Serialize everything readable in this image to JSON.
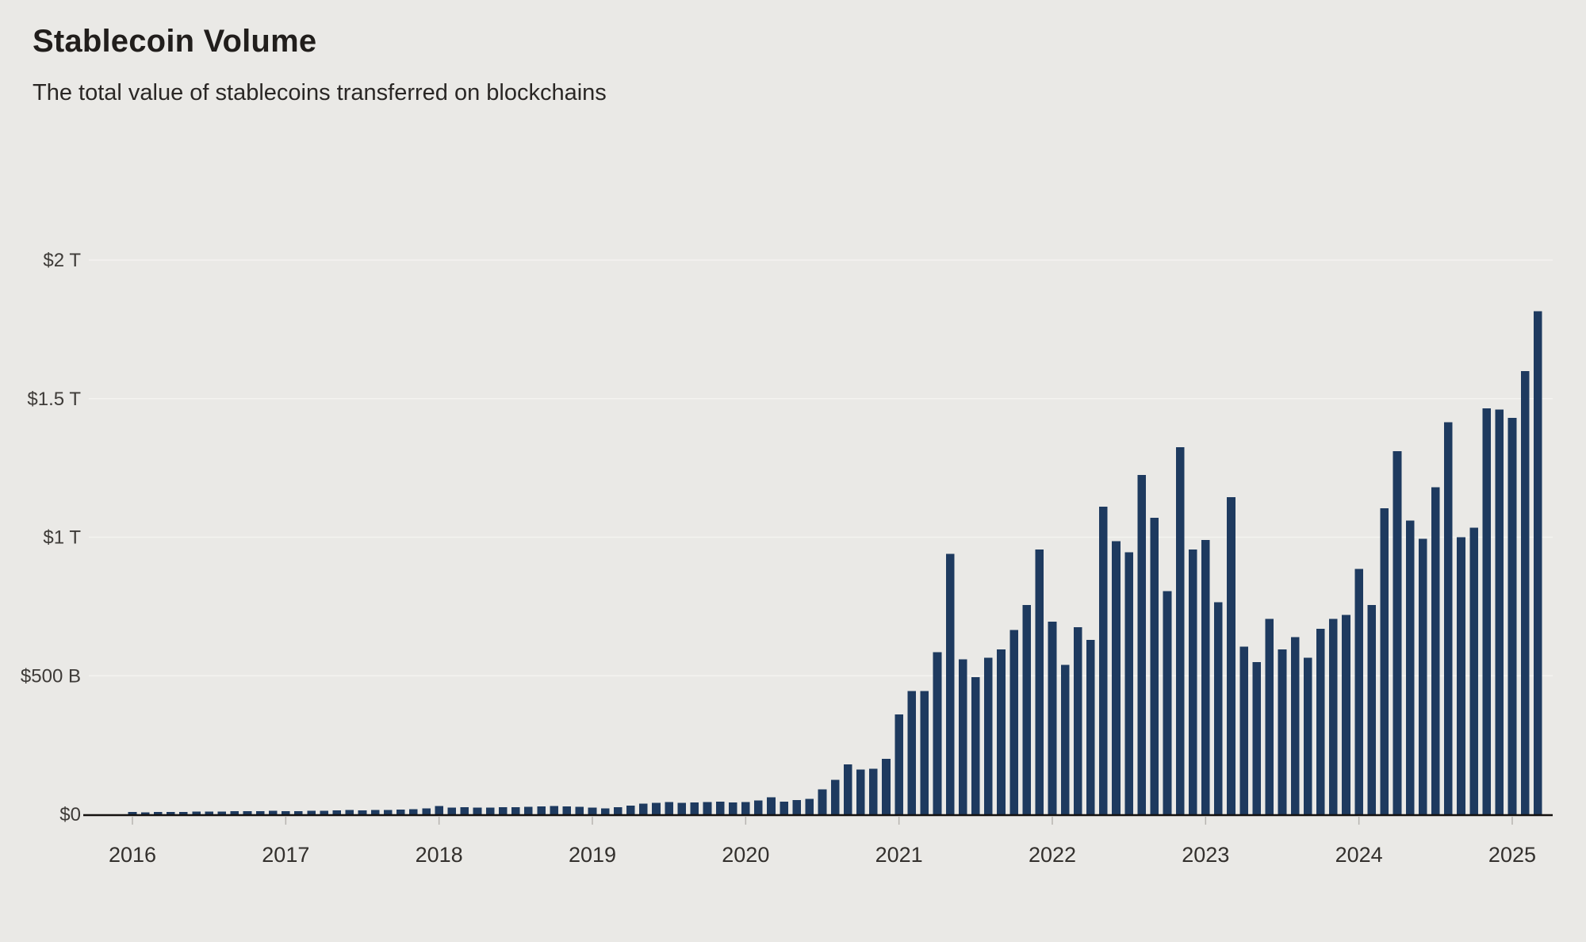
{
  "header": {
    "title": "Stablecoin Volume",
    "subtitle": "The total value of stablecoins transferred on blockchains"
  },
  "colors": {
    "background": "#eae9e6",
    "bar": "#1e3a5f",
    "gridline": "#f4f3f0",
    "axis": "#14110f",
    "label_text": "#3e3b38"
  },
  "chart_data": {
    "type": "bar",
    "title": "Stablecoin Volume",
    "subtitle": "The total value of stablecoins transferred on blockchains",
    "unit": "USD billions per month",
    "xlabel": "",
    "ylabel": "",
    "ylim": [
      0,
      2000
    ],
    "grid": true,
    "legend": "none",
    "x_ticks": [
      "2016",
      "2017",
      "2018",
      "2019",
      "2020",
      "2021",
      "2022",
      "2023",
      "2024",
      "2025"
    ],
    "y_ticks": [
      {
        "value": 0,
        "label": "$0"
      },
      {
        "value": 500,
        "label": "$500 B"
      },
      {
        "value": 1000,
        "label": "$1 T"
      },
      {
        "value": 1500,
        "label": "$1.5 T"
      },
      {
        "value": 2000,
        "label": "$2 T"
      }
    ],
    "series_by_year": [
      {
        "year": "2016",
        "monthly_values": [
          8,
          7,
          8,
          9,
          9,
          10,
          10,
          10,
          11,
          11,
          12,
          13
        ]
      },
      {
        "year": "2017",
        "monthly_values": [
          12,
          11,
          13,
          13,
          15,
          16,
          15,
          16,
          16,
          17,
          18,
          22
        ]
      },
      {
        "year": "2018",
        "monthly_values": [
          30,
          24,
          26,
          24,
          25,
          26,
          26,
          27,
          28,
          30,
          29,
          27
        ]
      },
      {
        "year": "2019",
        "monthly_values": [
          24,
          22,
          26,
          31,
          38,
          42,
          44,
          41,
          43,
          45,
          46,
          43
        ]
      },
      {
        "year": "2020",
        "monthly_values": [
          45,
          50,
          62,
          46,
          51,
          56,
          90,
          125,
          180,
          162,
          165,
          200
        ]
      },
      {
        "year": "2021",
        "monthly_values": [
          360,
          445,
          445,
          585,
          940,
          560,
          495,
          565,
          595,
          665,
          755,
          955
        ]
      },
      {
        "year": "2022",
        "monthly_values": [
          695,
          540,
          675,
          630,
          1110,
          985,
          945,
          1225,
          1070,
          805,
          1325,
          955
        ]
      },
      {
        "year": "2023",
        "monthly_values": [
          990,
          765,
          1145,
          605,
          550,
          705,
          595,
          640,
          565,
          670,
          705,
          720
        ]
      },
      {
        "year": "2024",
        "monthly_values": [
          885,
          755,
          1105,
          1310,
          1060,
          995,
          1180,
          1415,
          1000,
          1035,
          1465,
          1460
        ]
      },
      {
        "year": "2025",
        "monthly_values": [
          1430,
          1600,
          1815
        ]
      }
    ]
  }
}
